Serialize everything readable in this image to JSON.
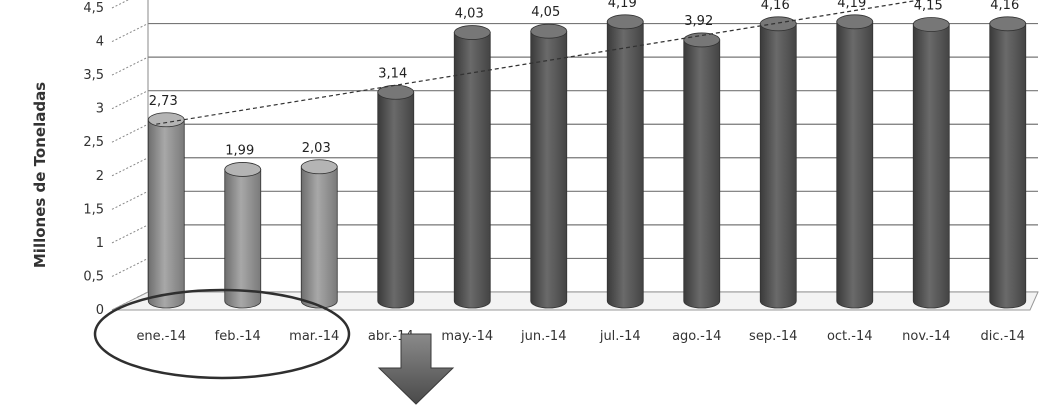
{
  "chart_data": {
    "type": "bar",
    "ylabel": "Millones de Toneladas",
    "xlabel": "",
    "title": "",
    "ylim": [
      0,
      4.5
    ],
    "yticks": [
      "0",
      "0,5",
      "1",
      "1,5",
      "2",
      "2,5",
      "3",
      "3,5",
      "4",
      "4,5"
    ],
    "categories": [
      "ene.-14",
      "feb.-14",
      "mar.-14",
      "abr.-14",
      "may.-14",
      "jun.-14",
      "jul.-14",
      "ago.-14",
      "sep.-14",
      "oct.-14",
      "nov.-14",
      "dic.-14"
    ],
    "values": [
      2.73,
      1.99,
      2.03,
      3.14,
      4.03,
      4.05,
      4.19,
      3.92,
      4.16,
      4.19,
      4.15,
      4.16
    ],
    "value_labels": [
      "2,73",
      "1,99",
      "2,03",
      "3,14",
      "4,03",
      "4,05",
      "4,19",
      "3,92",
      "4,16",
      "4,19",
      "4,15",
      "4,16"
    ],
    "trendline": {
      "type": "linear",
      "style": "dashed"
    },
    "grid": true,
    "highlight": {
      "categories": [
        "ene.-14",
        "feb.-14",
        "mar.-14"
      ],
      "shape": "ellipse"
    },
    "annotation": {
      "shape": "down-arrow"
    },
    "colors": {
      "light_bar": "#9a9a9a",
      "dark_bar": "#555555",
      "grid": "#777777"
    }
  }
}
